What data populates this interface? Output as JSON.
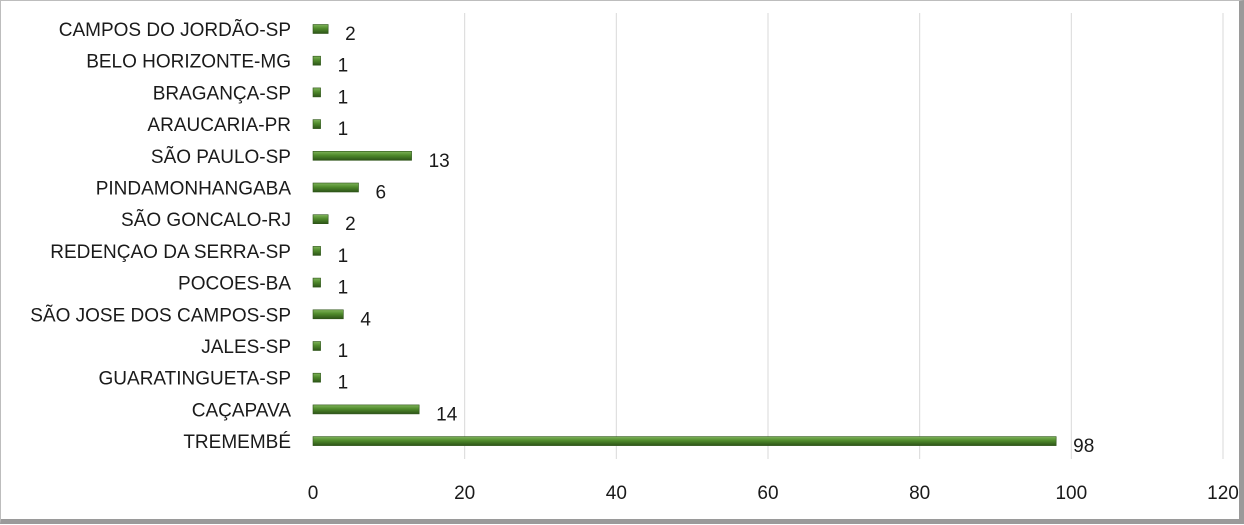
{
  "chart_data": {
    "type": "bar",
    "orientation": "horizontal",
    "categories": [
      "CAMPOS DO JORDÃO-SP",
      "BELO HORIZONTE-MG",
      "BRAGANÇA-SP",
      "ARAUCARIA-PR",
      "SÃO PAULO-SP",
      "PINDAMONHANGABA",
      "SÃO GONCALO-RJ",
      "REDENÇAO DA SERRA-SP",
      "POCOES-BA",
      "SÃO JOSE DOS CAMPOS-SP",
      "JALES-SP",
      "GUARATINGUETA-SP",
      "CAÇAPAVA",
      "TREMEMBÉ"
    ],
    "values": [
      2,
      1,
      1,
      1,
      13,
      6,
      2,
      1,
      1,
      4,
      1,
      1,
      14,
      98
    ],
    "xlim": [
      0,
      120
    ],
    "xticks": [
      0,
      20,
      40,
      60,
      80,
      100,
      120
    ],
    "grid": true,
    "legend": "none",
    "data_labels": true,
    "colors": {
      "bar_light": "#7fb35a",
      "bar_mid": "#4f8a2b",
      "bar_dark": "#2d5418",
      "grid": "#d9d9d9",
      "text": "#1a1a1a"
    }
  }
}
